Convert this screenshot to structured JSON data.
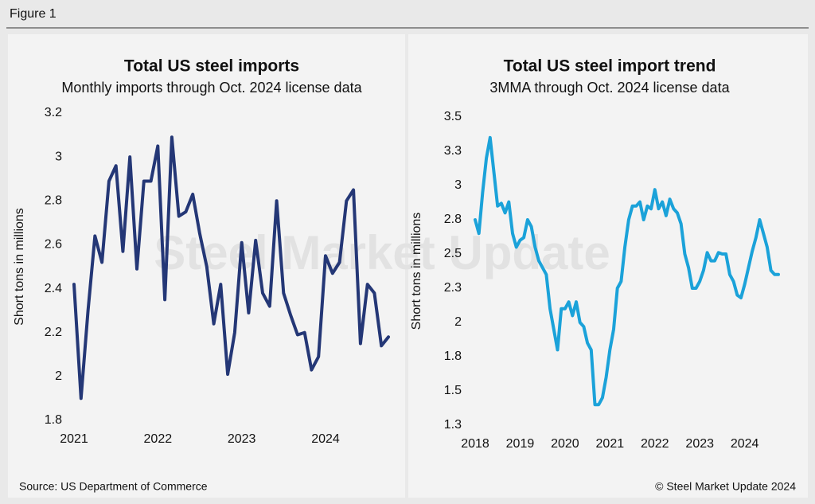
{
  "figure_label": "Figure 1",
  "source": "Source: US Department of Commerce",
  "credit": "© Steel Market Update 2024",
  "watermark": "Steel Market Update",
  "chart_data": [
    {
      "type": "line",
      "title": "Total US steel imports",
      "subtitle": "Monthly imports through Oct. 2024 license data",
      "ylabel": "Short tons in millions",
      "color": "#243776",
      "categories": [
        "2021",
        null,
        null,
        null,
        null,
        null,
        null,
        null,
        null,
        null,
        null,
        null,
        "2022",
        null,
        null,
        null,
        null,
        null,
        null,
        null,
        null,
        null,
        null,
        null,
        "2023",
        null,
        null,
        null,
        null,
        null,
        null,
        null,
        null,
        null,
        null,
        null,
        "2024",
        null,
        null,
        null,
        null,
        null,
        null,
        null,
        null,
        null
      ],
      "values": [
        2.42,
        1.9,
        2.3,
        2.64,
        2.52,
        2.89,
        2.96,
        2.57,
        3.0,
        2.49,
        2.89,
        2.89,
        3.05,
        2.35,
        3.09,
        2.73,
        2.75,
        2.83,
        2.65,
        2.5,
        2.24,
        2.42,
        2.01,
        2.2,
        2.61,
        2.29,
        2.62,
        2.38,
        2.32,
        2.8,
        2.38,
        2.28,
        2.19,
        2.2,
        2.03,
        2.09,
        2.55,
        2.47,
        2.52,
        2.8,
        2.85,
        2.15,
        2.42,
        2.38,
        2.14,
        2.18
      ],
      "ylim": [
        1.8,
        3.2
      ],
      "yticks": [
        1.8,
        2.0,
        2.2,
        2.4,
        2.6,
        2.8,
        3.0,
        3.2
      ]
    },
    {
      "type": "line",
      "title": "Total US steel import trend",
      "subtitle": "3MMA through Oct. 2024 license data",
      "ylabel": "Short tons in millions",
      "color": "#1ba2d9",
      "categories": [
        "2018",
        null,
        null,
        null,
        null,
        null,
        null,
        null,
        null,
        null,
        null,
        null,
        "2019",
        null,
        null,
        null,
        null,
        null,
        null,
        null,
        null,
        null,
        null,
        null,
        "2020",
        null,
        null,
        null,
        null,
        null,
        null,
        null,
        null,
        null,
        null,
        null,
        "2021",
        null,
        null,
        null,
        null,
        null,
        null,
        null,
        null,
        null,
        null,
        null,
        "2022",
        null,
        null,
        null,
        null,
        null,
        null,
        null,
        null,
        null,
        null,
        null,
        "2023",
        null,
        null,
        null,
        null,
        null,
        null,
        null,
        null,
        null,
        null,
        null,
        "2024",
        null,
        null,
        null,
        null,
        null,
        null,
        null,
        null,
        null
      ],
      "values": [
        2.75,
        2.65,
        2.95,
        3.2,
        3.35,
        3.1,
        2.85,
        2.87,
        2.8,
        2.88,
        2.65,
        2.55,
        2.6,
        2.62,
        2.75,
        2.7,
        2.55,
        2.45,
        2.4,
        2.35,
        2.1,
        1.95,
        1.8,
        2.1,
        2.1,
        2.15,
        2.05,
        2.15,
        2.0,
        1.97,
        1.85,
        1.8,
        1.4,
        1.4,
        1.45,
        1.6,
        1.8,
        1.95,
        2.25,
        2.3,
        2.55,
        2.75,
        2.85,
        2.85,
        2.88,
        2.75,
        2.85,
        2.83,
        2.97,
        2.83,
        2.88,
        2.78,
        2.9,
        2.83,
        2.8,
        2.72,
        2.5,
        2.4,
        2.25,
        2.25,
        2.3,
        2.38,
        2.51,
        2.45,
        2.45,
        2.51,
        2.5,
        2.5,
        2.35,
        2.3,
        2.2,
        2.18,
        2.28,
        2.4,
        2.52,
        2.62,
        2.75,
        2.65,
        2.55,
        2.38,
        2.35,
        2.35
      ],
      "ylim": [
        1.25,
        3.5
      ],
      "yticks": [
        {
          "value": 1.25,
          "label": "1.3"
        },
        1.5,
        {
          "value": 1.75,
          "label": "1.8"
        },
        2.0,
        {
          "value": 2.25,
          "label": "2.3"
        },
        2.5,
        {
          "value": 2.75,
          "label": "2.8"
        },
        3.0,
        {
          "value": 3.25,
          "label": "3.3"
        },
        3.5
      ]
    }
  ]
}
